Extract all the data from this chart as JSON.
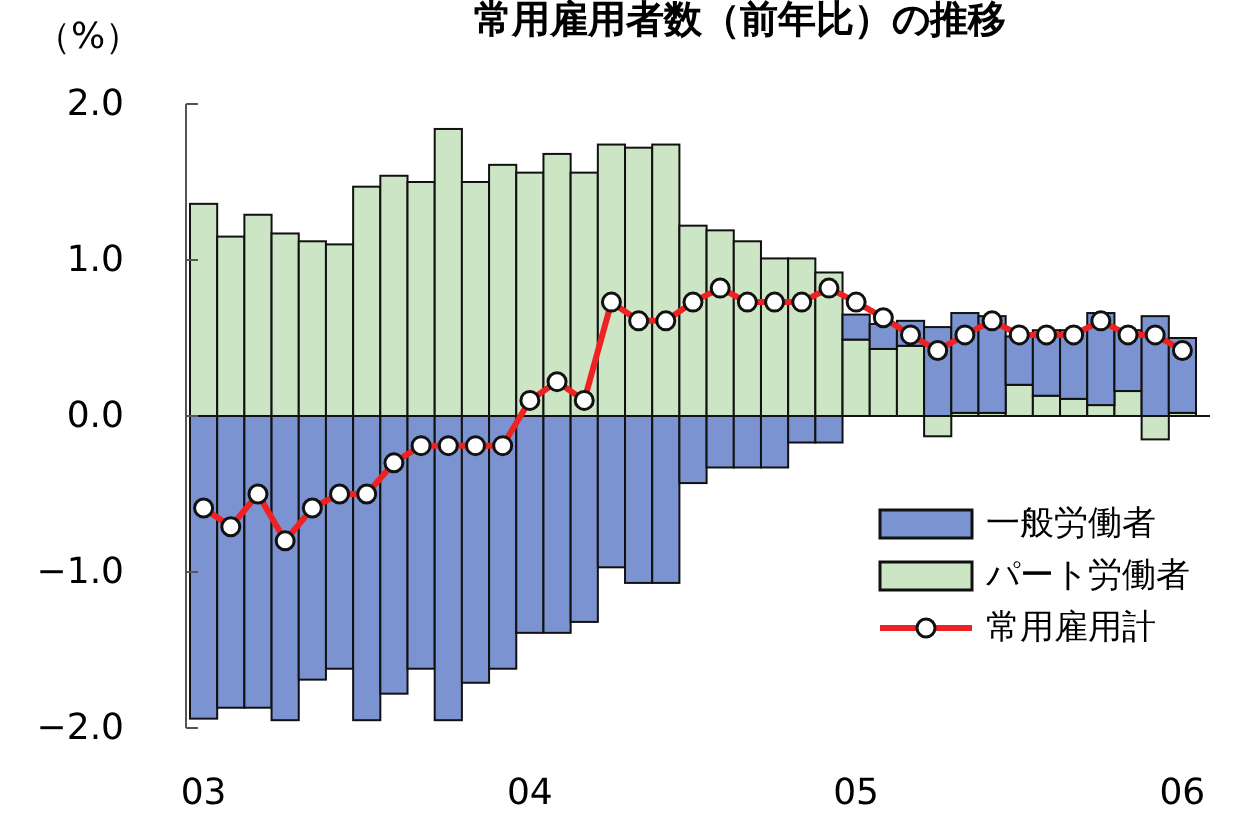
{
  "chart_data": {
    "type": "bar",
    "title": "常用雇用者数（前年比）の推移",
    "ylabel": "（%）",
    "categories": [
      "03",
      null,
      null,
      null,
      null,
      null,
      null,
      null,
      null,
      null,
      null,
      null,
      "04",
      null,
      null,
      null,
      null,
      null,
      null,
      null,
      null,
      null,
      null,
      null,
      "05",
      null,
      null,
      null,
      null,
      null,
      null,
      null,
      null,
      null,
      null,
      null,
      "06"
    ],
    "stacked": true,
    "ylim": [
      -2,
      2
    ],
    "yticks": [
      {
        "value": 2,
        "label": "2.0"
      },
      {
        "value": 1,
        "label": "1.0"
      },
      {
        "value": 0,
        "label": "0.0"
      },
      {
        "value": -1,
        "label": "−1.0"
      },
      {
        "value": -2,
        "label": "−2.0"
      }
    ],
    "legend": "bottom right",
    "series": [
      {
        "name": "パート労働者",
        "color": "#cce5c4",
        "values": [
          1.36,
          1.15,
          1.29,
          1.17,
          1.12,
          1.1,
          1.47,
          1.54,
          1.5,
          1.84,
          1.5,
          1.61,
          1.56,
          1.68,
          1.56,
          1.74,
          1.72,
          1.74,
          1.22,
          1.19,
          1.12,
          1.01,
          1.01,
          0.92,
          0.49,
          0.43,
          0.45,
          -0.13,
          0.02,
          0.02,
          0.2,
          0.13,
          0.11,
          0.07,
          0.16,
          -0.15,
          0.02
        ]
      },
      {
        "name": "一般労働者",
        "color": "#7b93d1",
        "values": [
          -1.94,
          -1.87,
          -1.87,
          -1.95,
          -1.69,
          -1.62,
          -1.95,
          -1.78,
          -1.62,
          -1.95,
          -1.71,
          -1.62,
          -1.39,
          -1.39,
          -1.32,
          -0.97,
          -1.07,
          -1.07,
          -0.43,
          -0.33,
          -0.33,
          -0.33,
          -0.17,
          -0.17,
          0.16,
          0.16,
          0.16,
          0.57,
          0.64,
          0.62,
          0.31,
          0.42,
          0.44,
          0.59,
          0.39,
          0.64,
          0.48
        ]
      },
      {
        "name": "常用雇用計",
        "type": "line",
        "color": "#ee2222",
        "marker": "circle",
        "line_style": "solid",
        "values": [
          -0.59,
          -0.71,
          -0.5,
          -0.8,
          -0.59,
          -0.5,
          -0.5,
          -0.3,
          -0.19,
          -0.19,
          -0.19,
          -0.19,
          0.1,
          0.22,
          0.1,
          0.73,
          0.61,
          0.61,
          0.73,
          0.82,
          0.73,
          0.73,
          0.73,
          0.82,
          0.73,
          0.63,
          0.52,
          0.42,
          0.52,
          0.61,
          0.52,
          0.52,
          0.52,
          0.61,
          0.52,
          0.52,
          0.42
        ]
      }
    ]
  }
}
